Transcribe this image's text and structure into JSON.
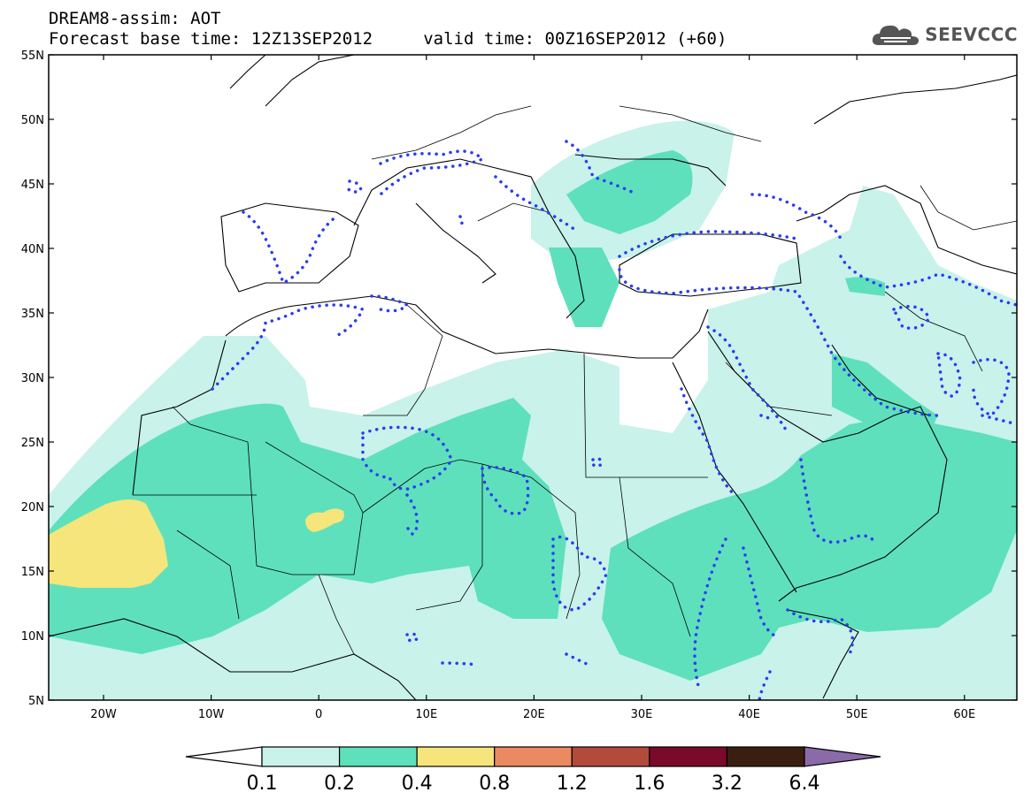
{
  "header": {
    "line1": "DREAM8-assim: AOT",
    "line2": "Forecast base time: 12Z13SEP2012     valid time: 00Z16SEP2012 (+60)"
  },
  "brand": {
    "name": "SEEVCCC",
    "icon": "cloud-logo-icon"
  },
  "map": {
    "lat_labels": [
      "55N",
      "50N",
      "45N",
      "40N",
      "35N",
      "30N",
      "25N",
      "20N",
      "15N",
      "10N",
      "5N"
    ],
    "lon_labels": [
      "20W",
      "10W",
      "0",
      "10E",
      "20E",
      "30E",
      "40E",
      "50E",
      "60E"
    ]
  },
  "colorbar": {
    "labels": [
      "0.1",
      "0.2",
      "0.4",
      "0.8",
      "1.2",
      "1.6",
      "3.2",
      "6.4"
    ],
    "colors": [
      "#ffffff",
      "#c8f2ea",
      "#5ee0bc",
      "#f5e57a",
      "#eb8a62",
      "#b34a3c",
      "#7a0a2a",
      "#3a1f10",
      "#8a6aa8"
    ]
  },
  "colors": {
    "level_1": "#c8f2ea",
    "level_2": "#5ee0bc",
    "level_3": "#f5e57a",
    "contour": "#2a3cf0",
    "border": "#000000"
  }
}
